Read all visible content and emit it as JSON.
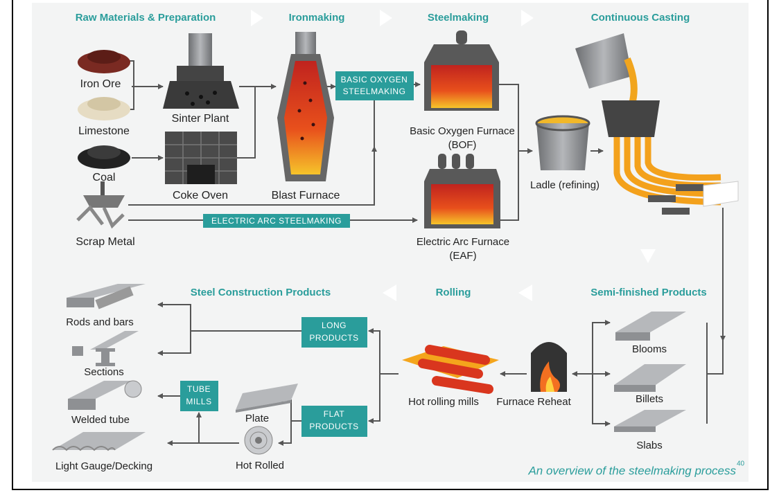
{
  "stages": [
    "Raw Materials & Preparation",
    "Ironmaking",
    "Steelmaking",
    "Continuous Casting",
    "Semi-finished Products",
    "Rolling",
    "Steel Construction Products"
  ],
  "nodes": {
    "iron_ore": "Iron Ore",
    "limestone": "Limestone",
    "coal": "Coal",
    "scrap_metal": "Scrap Metal",
    "sinter_plant": "Sinter Plant",
    "coke_oven": "Coke Oven",
    "blast_furnace": "Blast Furnace",
    "bof": [
      "Basic Oxygen Furnace",
      "(BOF)"
    ],
    "eaf": [
      "Electric Arc Furnace",
      "(EAF)"
    ],
    "ladle": "Ladle (refining)",
    "blooms": "Blooms",
    "billets": "Billets",
    "slabs": "Slabs",
    "furnace_reheat": "Furnace Reheat",
    "hot_rolling_mills": "Hot rolling mills",
    "plate": "Plate",
    "hot_rolled": "Hot Rolled",
    "rods_and_bars": "Rods and bars",
    "sections": "Sections",
    "welded_tube": "Welded tube",
    "light_gauge": "Light Gauge/Decking"
  },
  "tags": {
    "basic_oxygen": [
      "BASIC OXYGEN",
      "STEELMAKING"
    ],
    "electric_arc": "ELECTRIC ARC STEELMAKING",
    "long_products": [
      "LONG",
      "PRODUCTS"
    ],
    "flat_products": [
      "FLAT",
      "PRODUCTS"
    ],
    "tube_mills": [
      "TUBE",
      "MILLS"
    ]
  },
  "caption": {
    "text": "An overview of the steelmaking process",
    "note": "40"
  }
}
